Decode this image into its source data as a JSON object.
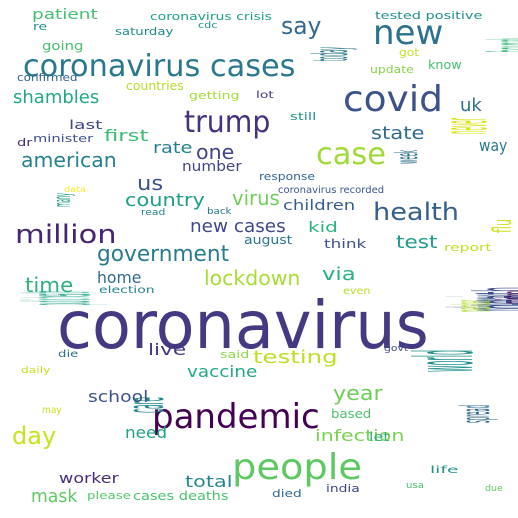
{
  "words": [
    {
      "text": "coronavirus",
      "color": "#443a83"
    },
    {
      "text": "people",
      "color": "#5ec962"
    },
    {
      "text": "pandemic",
      "color": "#440154"
    },
    {
      "text": "coronavirus cases",
      "color": "#2a788e"
    },
    {
      "text": "covid",
      "color": "#3b528b"
    },
    {
      "text": "new",
      "color": "#2c728e"
    },
    {
      "text": "trump",
      "color": "#46327e"
    },
    {
      "text": "case",
      "color": "#a0da39"
    },
    {
      "text": "million",
      "color": "#482475"
    },
    {
      "text": "government",
      "color": "#287c8e"
    },
    {
      "text": "death",
      "color": "#3e4c8a"
    },
    {
      "text": "health",
      "color": "#35608d"
    },
    {
      "text": "say",
      "color": "#31688e"
    },
    {
      "text": "lockdown",
      "color": "#a8db34"
    },
    {
      "text": "american",
      "color": "#26828e"
    },
    {
      "text": "year",
      "color": "#6ece58"
    },
    {
      "text": "testing",
      "color": "#bddf26"
    },
    {
      "text": "day",
      "color": "#cae11f"
    },
    {
      "text": "world",
      "color": "#21908d"
    },
    {
      "text": "positive coronavirus",
      "color": "#38598c"
    },
    {
      "text": "shambles",
      "color": "#22a884"
    },
    {
      "text": "us",
      "color": "#3b528b"
    },
    {
      "text": "virus",
      "color": "#6ece58"
    },
    {
      "text": "one",
      "color": "#414487"
    },
    {
      "text": "time",
      "color": "#2db27d"
    },
    {
      "text": "new cases",
      "color": "#3e4989"
    },
    {
      "text": "country",
      "color": "#1f9e89"
    },
    {
      "text": "state",
      "color": "#306a8e"
    },
    {
      "text": "infection",
      "color": "#7ad151"
    },
    {
      "text": "care",
      "color": "#25858e"
    },
    {
      "text": "via",
      "color": "#2ab07f"
    },
    {
      "text": "test",
      "color": "#1e9b8a"
    },
    {
      "text": "mask",
      "color": "#5ec962"
    },
    {
      "text": "rate",
      "color": "#277f8e"
    },
    {
      "text": "first",
      "color": "#3dbc74"
    },
    {
      "text": "vaccine",
      "color": "#22a884"
    },
    {
      "text": "home",
      "color": "#31688e"
    },
    {
      "text": "school",
      "color": "#3b528b"
    },
    {
      "text": "need",
      "color": "#20a386"
    },
    {
      "text": "total",
      "color": "#24878e"
    },
    {
      "text": "worker",
      "color": "#472d7b"
    },
    {
      "text": "uk",
      "color": "#2d708e"
    },
    {
      "text": "live",
      "color": "#453781"
    },
    {
      "text": "number",
      "color": "#414487"
    },
    {
      "text": "children",
      "color": "#365d8d"
    },
    {
      "text": "spread",
      "color": "#31688e"
    },
    {
      "text": "way",
      "color": "#2a788e"
    },
    {
      "text": "kid",
      "color": "#2db27d"
    },
    {
      "text": "today",
      "color": "#2a788e"
    },
    {
      "text": "patient",
      "color": "#44bf70"
    },
    {
      "text": "coronavirus crisis",
      "color": "#1f9e89"
    },
    {
      "text": "tested positive",
      "color": "#228c8d"
    },
    {
      "text": "going",
      "color": "#44bf70"
    },
    {
      "text": "saturday",
      "color": "#23898e"
    },
    {
      "text": "re",
      "color": "#23898e"
    },
    {
      "text": "cdc",
      "color": "#21918c"
    },
    {
      "text": "got",
      "color": "#c2df23"
    },
    {
      "text": "know",
      "color": "#44bf70"
    },
    {
      "text": "face mask",
      "color": "#35b779"
    },
    {
      "text": "update",
      "color": "#86d549"
    },
    {
      "text": "confirmed",
      "color": "#32648e"
    },
    {
      "text": "countries",
      "color": "#b5de2b"
    },
    {
      "text": "getting",
      "color": "#a2da37"
    },
    {
      "text": "lot",
      "color": "#453781"
    },
    {
      "text": "last",
      "color": "#404688"
    },
    {
      "text": "minister",
      "color": "#3b528b"
    },
    {
      "text": "dr",
      "color": "#482878"
    },
    {
      "text": "still",
      "color": "#218f8d"
    },
    {
      "text": "never",
      "color": "#d8e219"
    },
    {
      "text": "week",
      "color": "#2d708e"
    },
    {
      "text": "response",
      "color": "#32658e"
    },
    {
      "text": "coronavirus recorded",
      "color": "#39568c"
    },
    {
      "text": "data",
      "color": "#fde725"
    },
    {
      "text": "many",
      "color": "#1f9a8a"
    },
    {
      "text": "read",
      "color": "#25838e"
    },
    {
      "text": "back",
      "color": "#2c728e"
    },
    {
      "text": "august",
      "color": "#2c738e"
    },
    {
      "text": "think",
      "color": "#3b528b"
    },
    {
      "text": "report",
      "color": "#c0df25"
    },
    {
      "text": "flu",
      "color": "#d2e21b"
    },
    {
      "text": "election",
      "color": "#25858e"
    },
    {
      "text": "even",
      "color": "#b5de2b"
    },
    {
      "text": "public health",
      "color": "#20a386"
    },
    {
      "text": "member",
      "color": "#addc30"
    },
    {
      "text": "evidence",
      "color": "#46085c"
    },
    {
      "text": "govt",
      "color": "#3e4c8a"
    },
    {
      "text": "die",
      "color": "#2c728e"
    },
    {
      "text": "said",
      "color": "#8ed645"
    },
    {
      "text": "daily",
      "color": "#c5e021"
    },
    {
      "text": "may",
      "color": "#c8e020"
    },
    {
      "text": "based",
      "color": "#4ac16d"
    },
    {
      "text": "let",
      "color": "#2db27d"
    },
    {
      "text": "life",
      "color": "#21918c"
    },
    {
      "text": "please",
      "color": "#56c667"
    },
    {
      "text": "cases deaths",
      "color": "#4ac16d"
    },
    {
      "text": "died",
      "color": "#31688e"
    },
    {
      "text": "india",
      "color": "#404688"
    },
    {
      "text": "usa",
      "color": "#4ac16d"
    },
    {
      "text": "due",
      "color": "#5ec962"
    }
  ]
}
